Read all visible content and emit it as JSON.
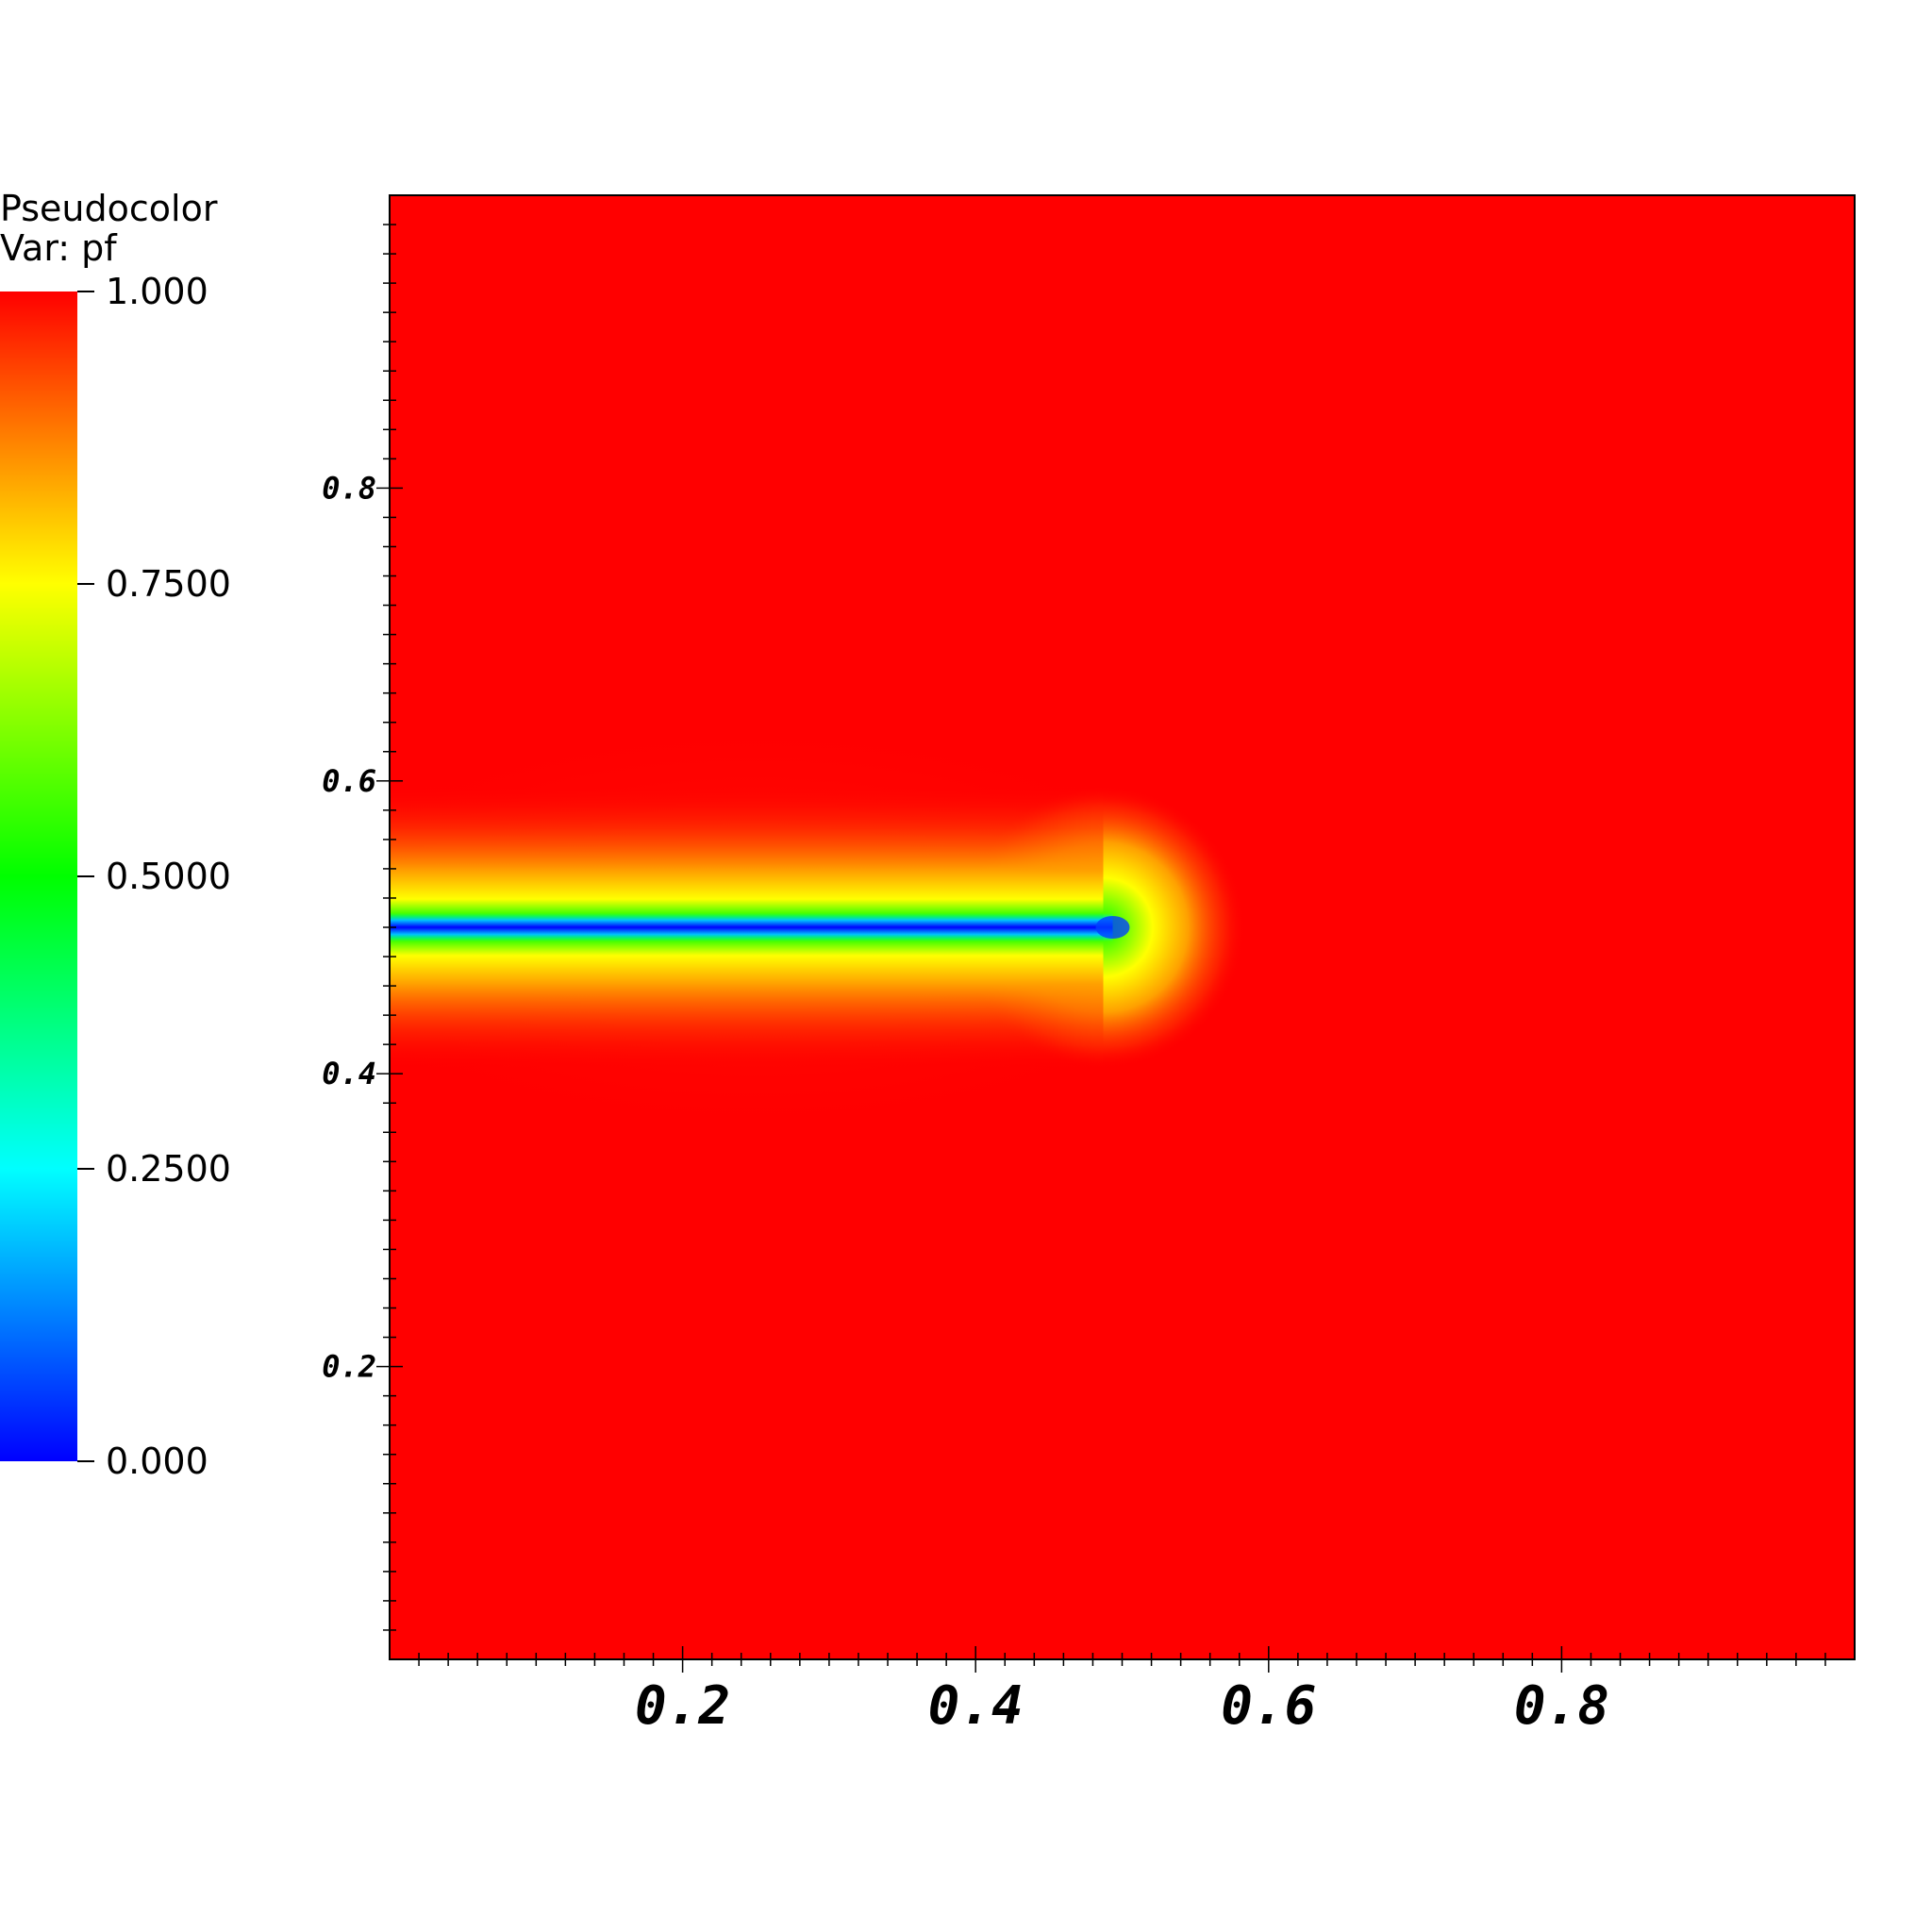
{
  "legend": {
    "title_line1": "Pseudocolor",
    "title_line2": "Var: pf",
    "colormap": [
      "#0000ff",
      "#00ffff",
      "#00ff00",
      "#ffff00",
      "#ff0000"
    ],
    "ticks": [
      {
        "value": 1.0,
        "label": "1.000"
      },
      {
        "value": 0.75,
        "label": "0.7500"
      },
      {
        "value": 0.5,
        "label": "0.5000"
      },
      {
        "value": 0.25,
        "label": "0.2500"
      },
      {
        "value": 0.0,
        "label": "0.000"
      }
    ]
  },
  "chart_data": {
    "type": "heatmap",
    "title": "",
    "variable": "pf",
    "value_range": [
      0,
      1
    ],
    "xlim": [
      0,
      1
    ],
    "ylim": [
      0,
      1
    ],
    "x_ticks": [
      {
        "value": 0.2,
        "label": "0.2"
      },
      {
        "value": 0.4,
        "label": "0.4"
      },
      {
        "value": 0.6,
        "label": "0.6"
      },
      {
        "value": 0.8,
        "label": "0.8"
      }
    ],
    "y_ticks": [
      {
        "value": 0.2,
        "label": "0.2"
      },
      {
        "value": 0.4,
        "label": "0.4"
      },
      {
        "value": 0.6,
        "label": "0.6"
      },
      {
        "value": 0.8,
        "label": "0.8"
      }
    ],
    "background_value": 1.0,
    "crack": {
      "x_start": 0.0,
      "x_tip": 0.5,
      "y": 0.5,
      "min_value": 0.0
    },
    "grid": false
  }
}
